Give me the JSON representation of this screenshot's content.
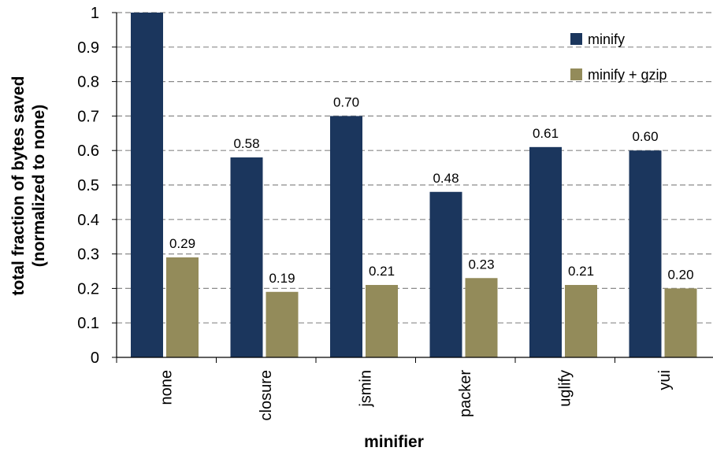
{
  "chart_data": {
    "type": "bar",
    "categories": [
      "none",
      "closure",
      "jsmin",
      "packer",
      "uglify",
      "yui"
    ],
    "series": [
      {
        "name": "minify",
        "color": "#1b365d",
        "values": [
          1.0,
          0.58,
          0.7,
          0.48,
          0.61,
          0.6
        ],
        "labels": [
          "",
          "0.58",
          "0.70",
          "0.48",
          "0.61",
          "0.60"
        ]
      },
      {
        "name": "minify + gzip",
        "color": "#938b5a",
        "values": [
          0.29,
          0.19,
          0.21,
          0.23,
          0.21,
          0.2
        ],
        "labels": [
          "0.29",
          "0.19",
          "0.21",
          "0.23",
          "0.21",
          "0.20"
        ]
      }
    ],
    "xlabel": "minifier",
    "ylabel_line1": "total fraction of bytes saved",
    "ylabel_line2": "(normalized to none)",
    "ylim": [
      0,
      1
    ],
    "yticks": [
      "0",
      "0.1",
      "0.2",
      "0.3",
      "0.4",
      "0.5",
      "0.6",
      "0.7",
      "0.8",
      "0.9",
      "1"
    ],
    "grid": "dashed-horizontal",
    "legend_position": "top-right"
  }
}
